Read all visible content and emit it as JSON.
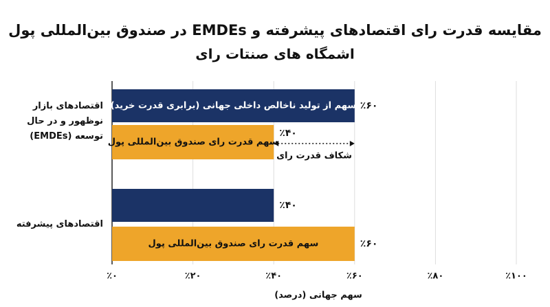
{
  "chart_data": {
    "type": "hbar",
    "title": "مقایسه قدرت رای اقتصادهای پیشرفته و EMDEs در صندوق بین‌المللی پول",
    "subtitle": "اشمگاه های صنتات رای",
    "categories": [
      "اقتصادهای بازار نوظهور و در حال توسعه (EMDEs)",
      "اقتصادهای پیشرفته"
    ],
    "series": [
      {
        "name": "سهم از تولید ناخالص داخلی جهانی (برابری قدرت خرید)",
        "color": "#1b3366",
        "values": [
          60,
          40
        ],
        "value_labels": [
          "٪۶۰",
          "٪۴۰"
        ]
      },
      {
        "name": "سهم قدرت رای صندوق بین‌المللی پول",
        "color": "#eea52a",
        "values": [
          40,
          60
        ],
        "value_labels": [
          "٪۴۰",
          "٪۶۰"
        ]
      }
    ],
    "annotation": "شکاف قدرت رای",
    "xlabel": "سهم جهانی (درصد)",
    "xlim": [
      0,
      100
    ],
    "xticks": [
      {
        "value": 0,
        "label": "٪۰"
      },
      {
        "value": 20,
        "label": "٪۲۰"
      },
      {
        "value": 40,
        "label": "٪۴۰"
      },
      {
        "value": 60,
        "label": "٪۶۰"
      },
      {
        "value": 80,
        "label": "٪۸۰"
      },
      {
        "value": 100,
        "label": "٪۱۰۰"
      }
    ],
    "grid": true
  }
}
